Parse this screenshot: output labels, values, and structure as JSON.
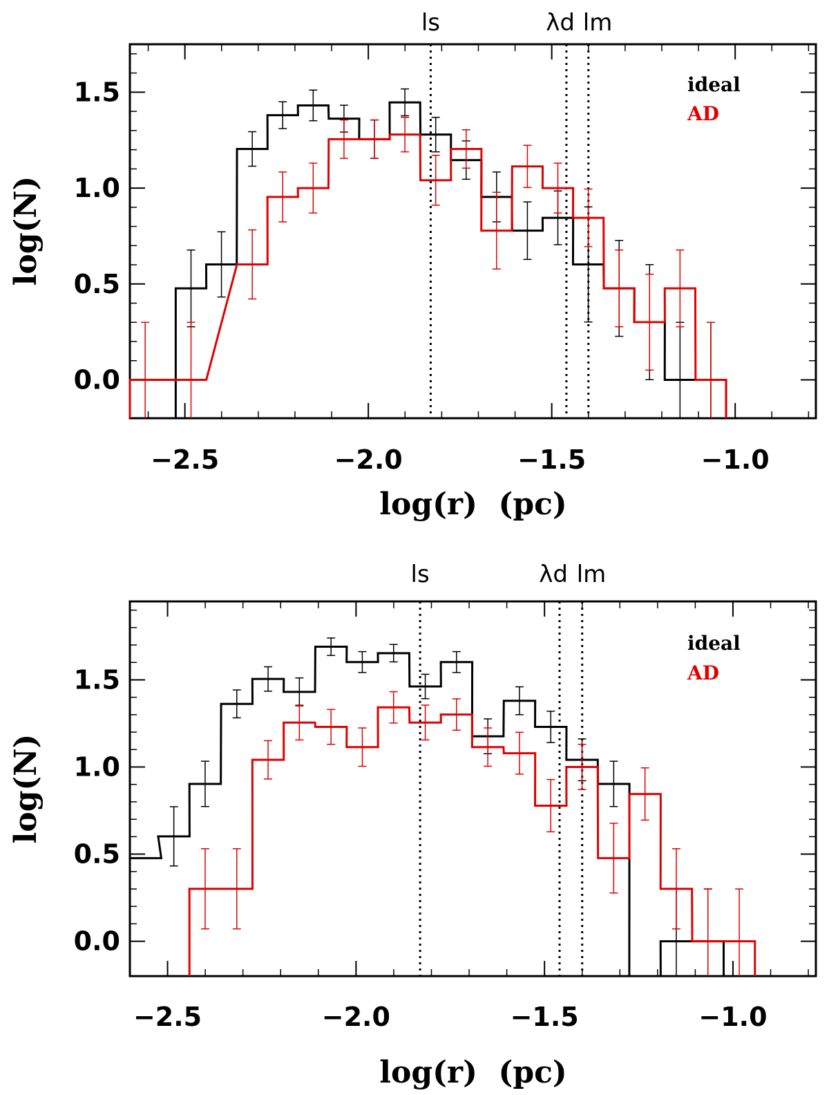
{
  "chart_data": [
    {
      "type": "histogram",
      "xlabel": "log(r)  (pc)",
      "ylabel": "log(N)",
      "xlim": [
        -2.65,
        -0.78
      ],
      "ylim": [
        -0.2,
        1.75
      ],
      "xticks": [
        -2.5,
        -2.0,
        -1.5,
        -1.0
      ],
      "xtick_labels": [
        "−2.5",
        "−2.0",
        "−1.5",
        "−1.0"
      ],
      "yticks": [
        0.0,
        0.5,
        1.0,
        1.5
      ],
      "ytick_labels": [
        "0.0",
        "0.5",
        "1.0",
        "1.5"
      ],
      "vlines": [
        {
          "x": -1.83,
          "label": "ls"
        },
        {
          "x": -1.46,
          "label": "λd"
        },
        {
          "x": -1.4,
          "label": "lm"
        }
      ],
      "legend": {
        "position": "top-right",
        "entries": [
          "ideal",
          "AD"
        ]
      },
      "bin_width": 0.0833,
      "series": [
        {
          "name": "ideal",
          "color": "#000000",
          "bin_starts": [
            -2.525,
            -2.442,
            -2.358,
            -2.275,
            -2.192,
            -2.108,
            -2.025,
            -1.942,
            -1.858,
            -1.775,
            -1.692,
            -1.608,
            -1.525,
            -1.442,
            -1.358,
            -1.275,
            -1.192,
            -1.108
          ],
          "values": [
            0.477,
            0.602,
            1.204,
            1.38,
            1.431,
            1.362,
            1.255,
            1.447,
            1.279,
            1.146,
            0.954,
            0.778,
            0.845,
            0.602,
            0.477,
            0.301,
            0.0,
            0.0
          ],
          "errors": [
            0.2,
            0.17,
            0.09,
            0.07,
            0.08,
            0.07,
            0.1,
            0.07,
            0.09,
            0.1,
            0.13,
            0.15,
            0.14,
            0.3,
            0.25,
            0.3,
            0.3,
            0.3
          ]
        },
        {
          "name": "AD",
          "color": "#e00000",
          "bin_starts": [
            -2.65,
            -2.525,
            -2.358,
            -2.275,
            -2.192,
            -2.108,
            -2.025,
            -1.942,
            -1.858,
            -1.775,
            -1.692,
            -1.608,
            -1.525,
            -1.442,
            -1.358,
            -1.275,
            -1.192,
            -1.108
          ],
          "values": [
            0.0,
            0.0,
            0.602,
            0.954,
            1.0,
            1.255,
            1.255,
            1.279,
            1.041,
            1.204,
            0.778,
            1.113,
            1.0,
            0.845,
            0.477,
            0.301,
            0.477,
            0.0
          ],
          "errors": [
            0.3,
            0.3,
            0.18,
            0.13,
            0.13,
            0.1,
            0.1,
            0.09,
            0.13,
            0.1,
            0.2,
            0.11,
            0.13,
            0.15,
            0.2,
            0.25,
            0.2,
            0.3
          ]
        }
      ]
    },
    {
      "type": "histogram",
      "xlabel": "log(r)  (pc)",
      "ylabel": "log(N)",
      "xlim": [
        -2.6,
        -0.78
      ],
      "ylim": [
        -0.2,
        1.95
      ],
      "xticks": [
        -2.5,
        -2.0,
        -1.5,
        -1.0
      ],
      "xtick_labels": [
        "−2.5",
        "−2.0",
        "−1.5",
        "−1.0"
      ],
      "yticks": [
        0.0,
        0.5,
        1.0,
        1.5
      ],
      "ytick_labels": [
        "0.0",
        "0.5",
        "1.0",
        "1.5"
      ],
      "vlines": [
        {
          "x": -1.83,
          "label": "ls"
        },
        {
          "x": -1.46,
          "label": "λd"
        },
        {
          "x": -1.4,
          "label": "lm"
        }
      ],
      "legend": {
        "position": "top-right",
        "entries": [
          "ideal",
          "AD"
        ]
      },
      "bin_width": 0.0833,
      "series": [
        {
          "name": "ideal",
          "color": "#000000",
          "bin_starts": [
            -2.6,
            -2.525,
            -2.442,
            -2.358,
            -2.275,
            -2.192,
            -2.108,
            -2.025,
            -1.942,
            -1.858,
            -1.775,
            -1.692,
            -1.608,
            -1.525,
            -1.442,
            -1.358,
            -1.275,
            -1.192,
            -1.108
          ],
          "values": [
            0.477,
            0.602,
            0.903,
            1.362,
            1.505,
            1.431,
            1.69,
            1.602,
            1.653,
            1.462,
            1.602,
            1.176,
            1.38,
            1.23,
            1.041,
            0.903,
            -0.3,
            0.0,
            0.0
          ],
          "errors": [
            0.2,
            0.17,
            0.13,
            0.08,
            0.07,
            0.08,
            0.05,
            0.06,
            0.05,
            0.07,
            0.06,
            0.1,
            0.08,
            0.09,
            0.12,
            0.13,
            0.0,
            0.3,
            0.3
          ],
          "error_bar_bins": [
            1,
            2,
            3,
            4,
            5,
            6,
            7,
            8,
            9,
            10,
            11,
            12,
            13,
            14,
            15,
            17,
            18
          ]
        },
        {
          "name": "AD",
          "color": "#e00000",
          "bin_starts": [
            -2.442,
            -2.358,
            -2.275,
            -2.192,
            -2.108,
            -2.025,
            -1.942,
            -1.858,
            -1.775,
            -1.692,
            -1.608,
            -1.525,
            -1.442,
            -1.358,
            -1.275,
            -1.192,
            -1.108,
            -1.025
          ],
          "values": [
            0.301,
            0.301,
            1.041,
            1.255,
            1.23,
            1.114,
            1.342,
            1.255,
            1.301,
            1.114,
            1.079,
            0.778,
            1.0,
            0.477,
            0.845,
            0.301,
            0.0,
            0.0
          ],
          "errors": [
            0.23,
            0.23,
            0.11,
            0.1,
            0.1,
            0.11,
            0.09,
            0.1,
            0.09,
            0.11,
            0.12,
            0.15,
            0.13,
            0.2,
            0.15,
            0.23,
            0.3,
            0.3
          ]
        }
      ]
    }
  ]
}
